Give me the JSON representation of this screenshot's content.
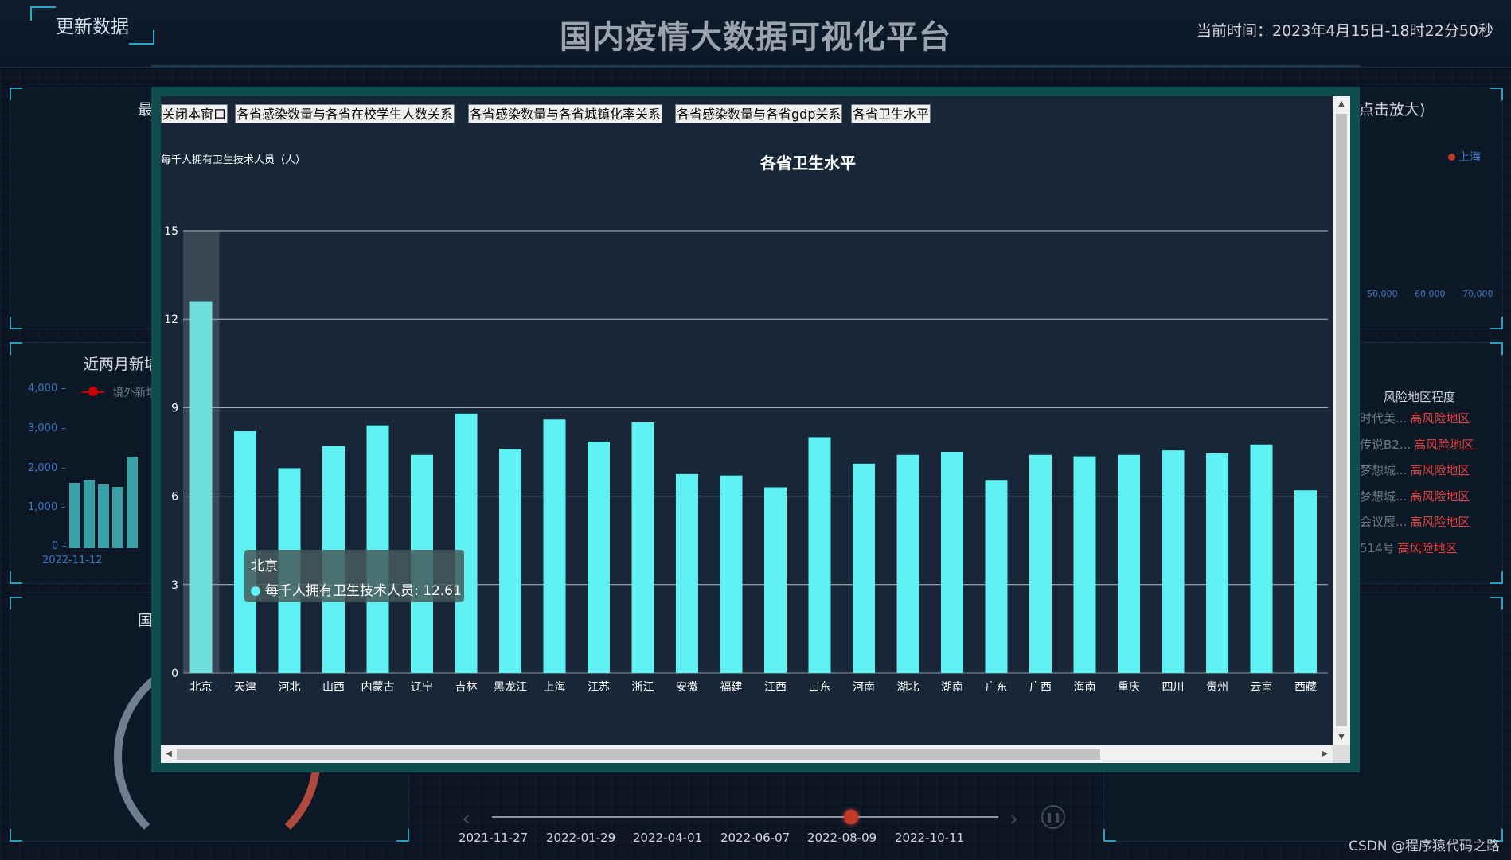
{
  "header": {
    "update_button": "更新数据",
    "title": "国内疫情大数据可视化平台",
    "clock": "当前时间：2023年4月15日-18时22分50秒"
  },
  "panels": {
    "left_mid_title": "近两月新增",
    "left_mid_legend": "境外新增",
    "left_mid_yticks": [
      "4,000 –",
      "3,000 –",
      "2,000 –",
      "1,000 –",
      "0 –"
    ],
    "left_mid_xtick": "2022-11-12",
    "left_top_title": "最",
    "left_bottom_title": "国",
    "right_top_title_suffix": "点击放大)",
    "right_top_legend": "上海",
    "right_top_xticks": [
      "50,000",
      "60,000",
      "70,000"
    ]
  },
  "risk": {
    "header": "风险地区程度",
    "rows": [
      {
        "name": "时代美...",
        "level": "高风险地区"
      },
      {
        "name": "传说B2...",
        "level": "高风险地区"
      },
      {
        "name": "梦想城...",
        "level": "高风险地区"
      },
      {
        "name": "梦想城...",
        "level": "高风险地区"
      },
      {
        "name": "会议展...",
        "level": "高风险地区"
      },
      {
        "name": "514号",
        "level": "高风险地区"
      }
    ]
  },
  "timeline": {
    "labels": [
      "2021-11-27",
      "2022-01-29",
      "2022-04-01",
      "2022-06-07",
      "2022-08-09",
      "2022-10-11"
    ]
  },
  "watermark": "CSDN @程序猿代码之路",
  "modal": {
    "tabs": [
      "关闭本窗口",
      "各省感染数量与各省在校学生人数关系",
      "各省感染数量与各省城镇化率关系",
      "各省感染数量与各省gdp关系",
      "各省卫生水平"
    ],
    "tooltip": {
      "title": "北京",
      "row": "每千人拥有卫生技术人员: 12.61"
    }
  },
  "chart_data": {
    "type": "bar",
    "title": "各省卫生水平",
    "ylabel": "每千人拥有卫生技术人员（人）",
    "ylim": [
      0,
      15
    ],
    "yticks": [
      0,
      3,
      6,
      9,
      12,
      15
    ],
    "grid": true,
    "bar_color": "#5ef0f3",
    "highlight_color": "#6fdede",
    "categories": [
      "北京",
      "天津",
      "河北",
      "山西",
      "内蒙古",
      "辽宁",
      "吉林",
      "黑龙江",
      "上海",
      "江苏",
      "浙江",
      "安徽",
      "福建",
      "江西",
      "山东",
      "河南",
      "湖北",
      "湖南",
      "广东",
      "广西",
      "海南",
      "重庆",
      "四川",
      "贵州",
      "云南",
      "西藏"
    ],
    "series": [
      {
        "name": "每千人拥有卫生技术人员",
        "values": [
          12.61,
          8.2,
          6.95,
          7.7,
          8.4,
          7.4,
          8.8,
          7.6,
          8.6,
          7.85,
          8.5,
          6.75,
          6.7,
          6.3,
          8.0,
          7.1,
          7.4,
          7.5,
          6.55,
          7.4,
          7.35,
          7.4,
          7.55,
          7.45,
          7.75,
          6.2
        ]
      }
    ]
  }
}
